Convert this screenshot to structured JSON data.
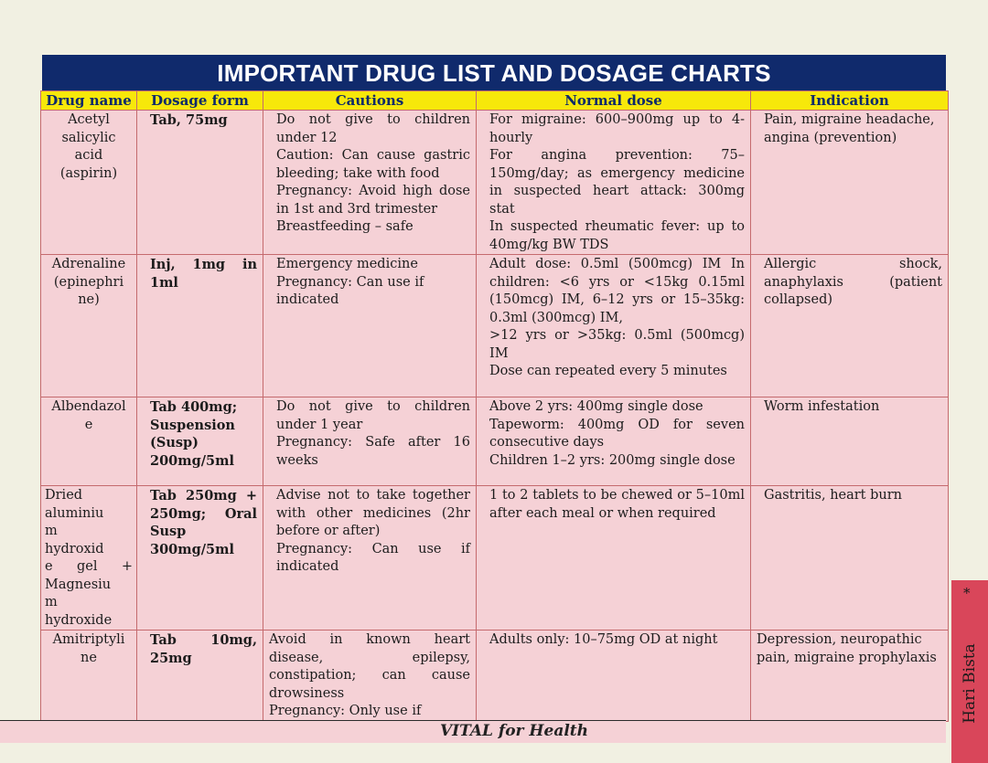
{
  "title": "IMPORTANT DRUG LIST AND DOSAGE CHARTS",
  "columns": [
    "Drug name",
    "Dosage form",
    "Cautions",
    "Normal dose",
    "Indication"
  ],
  "rows": [
    {
      "name_lines": [
        "Acetyl",
        "salicylic",
        "acid",
        "(aspirin)"
      ],
      "form": "Tab, 75mg",
      "cautions": [
        "Do not give to children under 12",
        "Caution: Can cause gastric bleeding; take with food",
        "Pregnancy: Avoid high dose in 1st and 3rd trimester",
        "Breastfeeding – safe"
      ],
      "dose": [
        "For migraine: 600–900mg up to 4-hourly",
        "For angina prevention: 75–150mg/day; as emergency medicine in suspected heart attack: 300mg stat",
        "In suspected rheumatic fever: up to 40mg/kg BW TDS"
      ],
      "indication": "Pain, migraine headache, angina (prevention)"
    },
    {
      "name_lines": [
        "Adrenaline",
        "(epinephri",
        "ne)"
      ],
      "form": "Inj, 1mg in 1ml",
      "cautions": [
        "Emergency medicine",
        "Pregnancy: Can use if indicated"
      ],
      "dose": [
        "Adult dose: 0.5ml (500mcg) IM In children: <6 yrs or <15kg 0.15ml (150mcg) IM, 6–12 yrs or 15–35kg: 0.3ml (300mcg) IM,",
        ">12 yrs or >35kg: 0.5ml (500mcg) IM",
        "Dose can repeated every 5 minutes"
      ],
      "indication": "Allergic shock, anaphylaxis (patient collapsed)"
    },
    {
      "name_lines": [
        "Albendazol",
        "e"
      ],
      "form": "Tab 400mg; Suspension (Susp) 200mg/5ml",
      "cautions": [
        "Do not give to children under 1 year",
        "Pregnancy: Safe after 16 weeks"
      ],
      "dose": [
        "Above 2 yrs: 400mg single dose",
        "Tapeworm: 400mg OD for seven consecutive days",
        "Children 1–2 yrs: 200mg single dose"
      ],
      "indication": "Worm infestation"
    },
    {
      "name_lines": [
        "Dried",
        "aluminiu",
        "m",
        "hydroxid",
        "e gel +",
        "Magnesiu",
        "m",
        "hydroxide"
      ],
      "form": "Tab 250mg + 250mg; Oral Susp 300mg/5ml",
      "cautions": [
        "Advise not to take together with other medicines (2hr before or after)",
        "Pregnancy: Can use if indicated"
      ],
      "dose": [
        "1 to 2 tablets to be chewed or 5–10ml after each meal or when required"
      ],
      "indication": "Gastritis, heart burn"
    },
    {
      "name_lines": [
        "Amitriptyli",
        "ne"
      ],
      "form": "Tab 10mg, 25mg",
      "cautions": [
        "Avoid in known heart disease, epilepsy, constipation; can cause drowsiness",
        "Pregnancy: Only use if"
      ],
      "dose": [
        "Adults only: 10–75mg OD at night"
      ],
      "indication": "Depression, neuropathic pain, migraine prophylaxis"
    }
  ],
  "footer": "VITAL for Health",
  "side_label": "Hari Bista",
  "side_mark": "*",
  "colors": {
    "title_bg": "#102a6c",
    "header_bg": "#f7e80a",
    "cell_bg": "#f5d1d6",
    "border": "#c56a6e",
    "side_tab": "#d9465a"
  }
}
